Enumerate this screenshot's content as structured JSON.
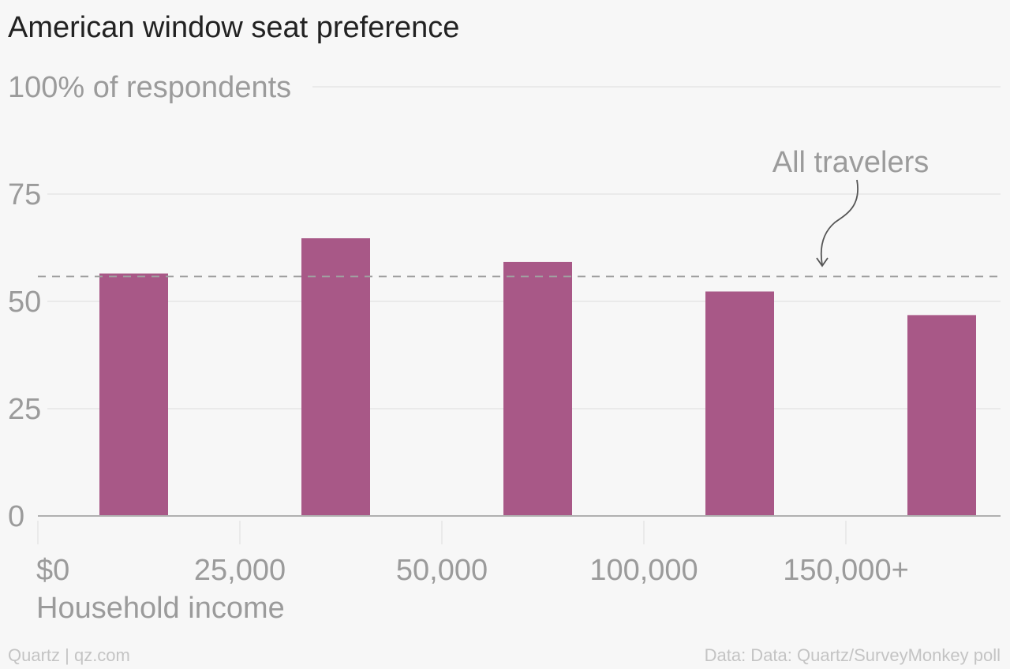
{
  "title": "American window seat preference",
  "footer": {
    "credit": "Quartz | qz.com",
    "source": "Data: Data: Quartz/SurveyMonkey poll"
  },
  "colors": {
    "bar": "#a85887",
    "reference_line": "#a0a0a0",
    "grid": "#e6e6e6",
    "axis": "#b0b0b0",
    "label": "#9b9b9b",
    "title": "#222222"
  },
  "chart_data": {
    "type": "bar",
    "title": "American window seat preference",
    "xlabel": "Household income",
    "ylabel": "% of respondents",
    "x_tick_labels": [
      "$0",
      "25,000",
      "50,000",
      "100,000",
      "150,000+"
    ],
    "y_tick_labels": [
      "0",
      "25",
      "50",
      "75",
      "100% of respondents"
    ],
    "y_ticks": [
      0,
      25,
      50,
      75,
      100
    ],
    "ylim": [
      0,
      100
    ],
    "grid": true,
    "series": [
      {
        "values": [
          56.5,
          64.7,
          59.2,
          52.3,
          46.8
        ]
      }
    ],
    "reference_line": {
      "label": "All travelers",
      "value": 55.8,
      "style": "dashed"
    }
  }
}
